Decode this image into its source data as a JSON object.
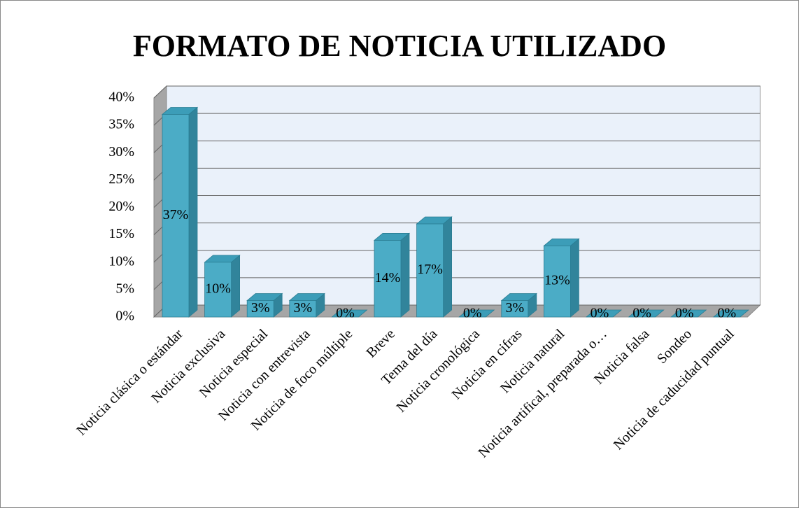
{
  "chart_data": {
    "type": "bar3d",
    "title": "FORMATO DE NOTICIA UTILIZADO",
    "categories": [
      "Noticia clásica o estándar",
      "Noticia exclusiva",
      "Noticia especial",
      "Noticia con entrevista",
      "Noticia de foco múltiple",
      "Breve",
      "Tema del día",
      "Noticia cronológica",
      "Noticia en cifras",
      "Noticia natural",
      "Noticia artifical, preparada o…",
      "Noticia falsa",
      "Sondeo",
      "Noticia de caducidad puntual"
    ],
    "values": [
      37,
      10,
      3,
      3,
      0,
      14,
      17,
      0,
      3,
      13,
      0,
      0,
      0,
      0
    ],
    "value_labels": [
      "37%",
      "10%",
      "3%",
      "3%",
      "0%",
      "14%",
      "17%",
      "0%",
      "3%",
      "13%",
      "0%",
      "0%",
      "0%",
      "0%"
    ],
    "color": "#4bacc6",
    "ylim": [
      0,
      40
    ],
    "yticks": [
      {
        "value": 0,
        "label": "0%"
      },
      {
        "value": 5,
        "label": "5%"
      },
      {
        "value": 10,
        "label": "10%"
      },
      {
        "value": 15,
        "label": "15%"
      },
      {
        "value": 20,
        "label": "20%"
      },
      {
        "value": 25,
        "label": "25%"
      },
      {
        "value": 30,
        "label": "30%"
      },
      {
        "value": 35,
        "label": "35%"
      },
      {
        "value": 40,
        "label": "40%"
      }
    ],
    "grid": true
  }
}
